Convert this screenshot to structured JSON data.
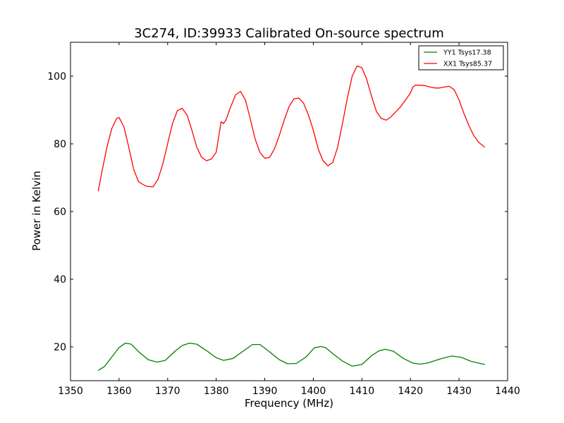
{
  "chart_data": {
    "type": "line",
    "title": "3C274, ID:39933 Calibrated On-source spectrum",
    "xlabel": "Frequency (MHz)",
    "ylabel": "Power in Kelvin",
    "xlim": [
      1350,
      1440
    ],
    "ylim": [
      10,
      110
    ],
    "xticks": [
      1350,
      1360,
      1370,
      1380,
      1390,
      1400,
      1410,
      1420,
      1430,
      1440
    ],
    "yticks": [
      20,
      40,
      60,
      80,
      100
    ],
    "grid": false,
    "legend": "top-right",
    "series": [
      {
        "name": "YY1 Tsys17.38",
        "color": "#008000",
        "x": [
          1355.7,
          1357,
          1358.5,
          1360,
          1361.3,
          1362.5,
          1364,
          1366,
          1367.8,
          1369.5,
          1371.5,
          1373,
          1374.5,
          1376,
          1378,
          1380,
          1381.5,
          1383.5,
          1385.5,
          1387.5,
          1389,
          1391,
          1393,
          1394.7,
          1396.5,
          1398.5,
          1400.2,
          1401.5,
          1402.5,
          1404,
          1406,
          1408,
          1410,
          1412,
          1413.5,
          1414.8,
          1416.5,
          1418.5,
          1420.5,
          1422,
          1423.5,
          1425,
          1426.5,
          1428.5,
          1430.5,
          1432.5,
          1435.3
        ],
        "y": [
          13.0,
          14.2,
          17.0,
          19.8,
          21.1,
          20.8,
          18.6,
          16.2,
          15.5,
          16.0,
          18.7,
          20.4,
          21.1,
          20.8,
          18.9,
          16.8,
          16.0,
          16.6,
          18.7,
          20.7,
          20.7,
          18.5,
          16.2,
          15.0,
          15.1,
          17.0,
          19.7,
          20.1,
          19.8,
          18.0,
          15.8,
          14.3,
          14.8,
          17.4,
          18.8,
          19.3,
          18.7,
          16.6,
          15.2,
          14.9,
          15.2,
          15.9,
          16.6,
          17.3,
          16.9,
          15.7,
          14.8
        ]
      },
      {
        "name": "XX1 Tsys85.37",
        "color": "#ff0000",
        "x": [
          1355.7,
          1356.5,
          1357.5,
          1358.5,
          1359.5,
          1360,
          1361,
          1362,
          1363,
          1364,
          1365.5,
          1367,
          1368,
          1369,
          1370,
          1371,
          1372,
          1373,
          1374,
          1375,
          1376,
          1377,
          1378,
          1379,
          1380,
          1381,
          1381.5,
          1382,
          1383,
          1384,
          1385,
          1386,
          1387,
          1388,
          1389,
          1390,
          1391,
          1392,
          1393,
          1394,
          1395,
          1396,
          1397,
          1398,
          1399,
          1400,
          1401,
          1402,
          1403,
          1404,
          1405,
          1406,
          1407,
          1408,
          1409,
          1410,
          1411,
          1412,
          1413,
          1414,
          1415,
          1416,
          1417,
          1418,
          1419,
          1420,
          1420.5,
          1421,
          1422,
          1423,
          1424,
          1425,
          1426,
          1427,
          1428,
          1429,
          1430,
          1431,
          1432,
          1433,
          1434,
          1435.3
        ],
        "y": [
          66.0,
          72.0,
          79.0,
          84.5,
          87.5,
          87.8,
          85.0,
          79.0,
          72.5,
          68.8,
          67.5,
          67.3,
          69.5,
          74.0,
          80.0,
          86.0,
          89.8,
          90.5,
          88.5,
          84.0,
          79.0,
          76.0,
          75.0,
          75.5,
          77.5,
          86.5,
          86.0,
          87.0,
          91.0,
          94.5,
          95.5,
          93.0,
          87.5,
          81.5,
          77.5,
          75.7,
          76.0,
          78.5,
          82.5,
          87.0,
          91.0,
          93.3,
          93.5,
          92.0,
          88.5,
          84.0,
          78.5,
          75.0,
          73.5,
          74.5,
          79.0,
          86.0,
          93.5,
          100.0,
          103.0,
          102.5,
          99.0,
          94.0,
          89.5,
          87.5,
          87.0,
          88.0,
          89.5,
          91.0,
          93.0,
          95.0,
          96.8,
          97.3,
          97.3,
          97.2,
          96.8,
          96.5,
          96.5,
          96.8,
          97.0,
          96.0,
          93.0,
          89.0,
          85.5,
          82.5,
          80.5,
          79.0
        ]
      }
    ]
  }
}
